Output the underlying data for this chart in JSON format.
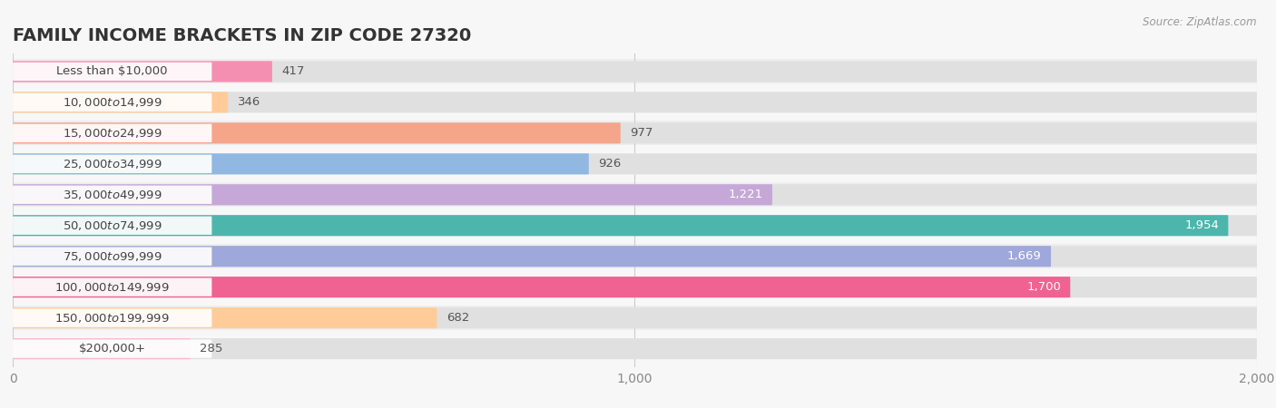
{
  "title": "FAMILY INCOME BRACKETS IN ZIP CODE 27320",
  "source": "Source: ZipAtlas.com",
  "categories": [
    "Less than $10,000",
    "$10,000 to $14,999",
    "$15,000 to $24,999",
    "$25,000 to $34,999",
    "$35,000 to $49,999",
    "$50,000 to $74,999",
    "$75,000 to $99,999",
    "$100,000 to $149,999",
    "$150,000 to $199,999",
    "$200,000+"
  ],
  "values": [
    417,
    346,
    977,
    926,
    1221,
    1954,
    1669,
    1700,
    682,
    285
  ],
  "bar_colors": [
    "#F48FB1",
    "#FFCC99",
    "#F4A58A",
    "#90B8E0",
    "#C5A8D8",
    "#4DB6AC",
    "#9FA8DA",
    "#F06292",
    "#FFCC99",
    "#F8BBD0"
  ],
  "label_colors": [
    "#555555",
    "#555555",
    "#555555",
    "#555555",
    "#ffffff",
    "#ffffff",
    "#ffffff",
    "#ffffff",
    "#555555",
    "#555555"
  ],
  "value_inside": [
    false,
    false,
    false,
    false,
    true,
    true,
    true,
    true,
    false,
    false
  ],
  "xlim_max": 2000,
  "display_max": 2100,
  "xticks": [
    0,
    1000,
    2000
  ],
  "xtick_labels": [
    "0",
    "1,000",
    "2,000"
  ],
  "background_color": "#f7f7f7",
  "bar_bg_color": "#e8e8e8",
  "row_bg_color": "#f0f0f0",
  "title_fontsize": 14,
  "label_fontsize": 9.5,
  "value_fontsize": 9.5
}
